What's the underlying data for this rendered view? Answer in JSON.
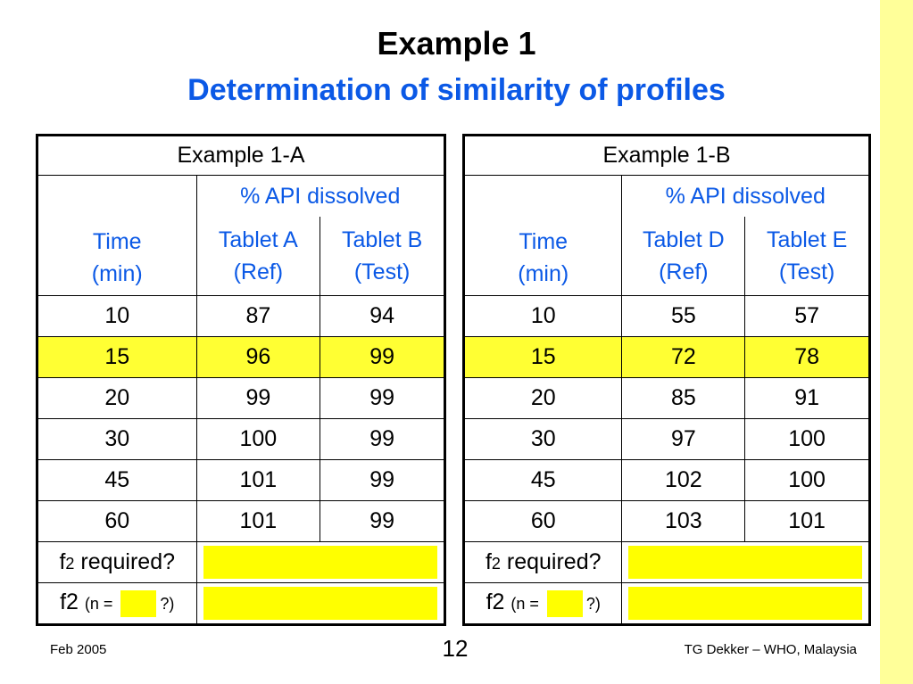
{
  "slide": {
    "title": "Example 1",
    "subtitle": "Determination of similarity of profiles",
    "footer_date": "Feb 2005",
    "page_number": "12",
    "footer_credit": "TG Dekker – WHO, Malaysia"
  },
  "colors": {
    "title_blue": "#0b59e6",
    "header_red": "#e8280c",
    "highlight_yellow": "#ffff33",
    "strip_yellow": "#ffff99"
  },
  "tables": [
    {
      "header": "Example 1-A",
      "api_label": "% API dissolved",
      "time_label_1": "Time",
      "time_label_2": "(min)",
      "ref_label_1": "Tablet A",
      "ref_label_2": "(Ref)",
      "test_label_1": "Tablet B",
      "test_label_2": "(Test)",
      "rows": [
        [
          "10",
          "87",
          "94"
        ],
        [
          "15",
          "96",
          "99"
        ],
        [
          "20",
          "99",
          "99"
        ],
        [
          "30",
          "100",
          "99"
        ],
        [
          "45",
          "101",
          "99"
        ],
        [
          "60",
          "101",
          "99"
        ]
      ],
      "f2_required_prefix": "f",
      "f2_required_sub": "2",
      "f2_required_label": " required?",
      "f2_prefix": "f",
      "f2_sub": "2",
      "f2_n_open": "(n = ",
      "f2_n_close": "?)"
    },
    {
      "header": "Example 1-B",
      "api_label": "% API dissolved",
      "time_label_1": "Time",
      "time_label_2": "(min)",
      "ref_label_1": "Tablet D",
      "ref_label_2": "(Ref)",
      "test_label_1": "Tablet E",
      "test_label_2": "(Test)",
      "rows": [
        [
          "10",
          "55",
          "57"
        ],
        [
          "15",
          "72",
          "78"
        ],
        [
          "20",
          "85",
          "91"
        ],
        [
          "30",
          "97",
          "100"
        ],
        [
          "45",
          "102",
          "100"
        ],
        [
          "60",
          "103",
          "101"
        ]
      ],
      "f2_required_prefix": "f",
      "f2_required_sub": "2",
      "f2_required_label": " required?",
      "f2_prefix": "f",
      "f2_sub": "2",
      "f2_n_open": "(n = ",
      "f2_n_close": "?)"
    }
  ]
}
